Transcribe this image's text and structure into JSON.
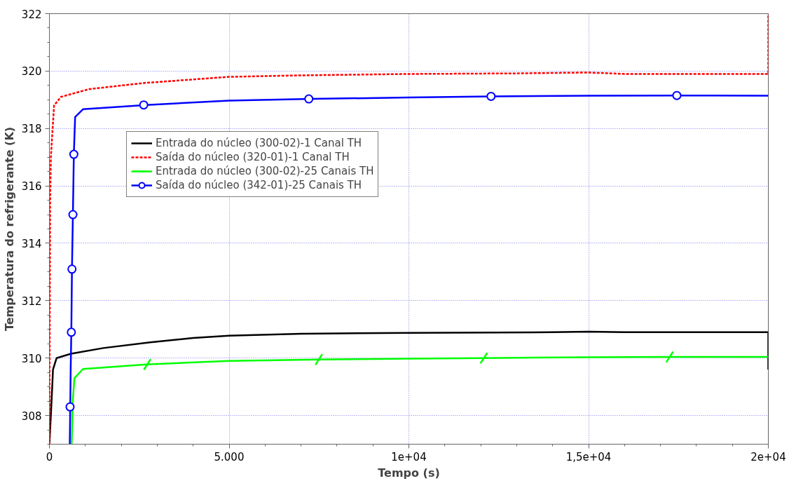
{
  "chart_data": {
    "type": "line",
    "xlabel": "Tempo (s)",
    "ylabel": "Temperatura do refrigerante (K)",
    "xlim": [
      0,
      20000
    ],
    "ylim": [
      307,
      322
    ],
    "xticks": [
      0,
      {
        "value": 5000,
        "label": "5.000"
      },
      {
        "value": 10000,
        "label": "1e+04"
      },
      {
        "value": 15000,
        "label": "1,5e+04"
      },
      {
        "value": 20000,
        "label": "2e+04"
      }
    ],
    "yticks": [
      308,
      310,
      312,
      314,
      316,
      318,
      320,
      322
    ],
    "grid": true,
    "legend": "top left",
    "series": [
      {
        "name": "Entrada do núcleo (300-02)-1 Canal TH",
        "color": "#000000",
        "line_style": "solid",
        "x": [
          0,
          60,
          100,
          200,
          600,
          1500,
          2800,
          4000,
          5000,
          7000,
          10000,
          14000,
          15000,
          16000,
          20000,
          20000
        ],
        "values": [
          307,
          308.5,
          309.6,
          310.0,
          310.15,
          310.35,
          310.55,
          310.7,
          310.78,
          310.85,
          310.88,
          310.9,
          310.92,
          310.9,
          310.9,
          309.6
        ]
      },
      {
        "name": "Saída do núcleo (320-01)-1 Canal TH",
        "color": "#ff0000",
        "line_style": "dashed",
        "x": [
          0,
          20,
          40,
          130,
          320,
          1100,
          2600,
          3900,
          5000,
          7000,
          10000,
          13000,
          15000,
          16000,
          20000,
          20000
        ],
        "values": [
          307,
          315.4,
          317,
          318.8,
          319.1,
          319.37,
          319.58,
          319.7,
          319.8,
          319.85,
          319.9,
          319.92,
          319.95,
          319.9,
          319.9,
          322
        ]
      },
      {
        "name": "Entrada do núcleo (300-02)-25 Canais TH",
        "color": "#00ff00",
        "line_style": "solid",
        "x": [
          620,
          650,
          696,
          934,
          2700,
          5000,
          7500,
          10000,
          12000,
          15000,
          17200,
          20000
        ],
        "values": [
          307,
          308.5,
          309.3,
          309.62,
          309.78,
          309.9,
          309.95,
          309.98,
          310.0,
          310.03,
          310.04,
          310.04
        ]
      },
      {
        "type": "scatter",
        "marker": "cross",
        "color": "#00ff00",
        "x": [
          2724,
          7495,
          12087,
          17256
        ],
        "values": [
          309.78,
          309.95,
          310.0,
          310.04
        ]
      },
      {
        "name": "Saída do núcleo (342-01)-25 Canais TH",
        "color": "#0000ff",
        "line_style": "solid",
        "x": [
          567,
          580,
          592,
          610,
          628,
          654,
          680,
          716,
          934,
          2700,
          5000,
          7300,
          10000,
          12300,
          15000,
          17400,
          20000
        ],
        "values": [
          307,
          308.3,
          309.6,
          310.9,
          313.1,
          315.0,
          317.1,
          318.4,
          318.67,
          318.82,
          318.97,
          319.03,
          319.08,
          319.12,
          319.14,
          319.15,
          319.14
        ]
      },
      {
        "type": "scatter",
        "marker": "circle",
        "color": "#0000ff",
        "x": [
          575,
          610,
          628,
          654,
          680,
          2624,
          7217,
          12286,
          17455
        ],
        "values": [
          308.3,
          310.9,
          313.1,
          315.0,
          317.1,
          318.82,
          319.03,
          319.12,
          319.15
        ]
      }
    ]
  }
}
